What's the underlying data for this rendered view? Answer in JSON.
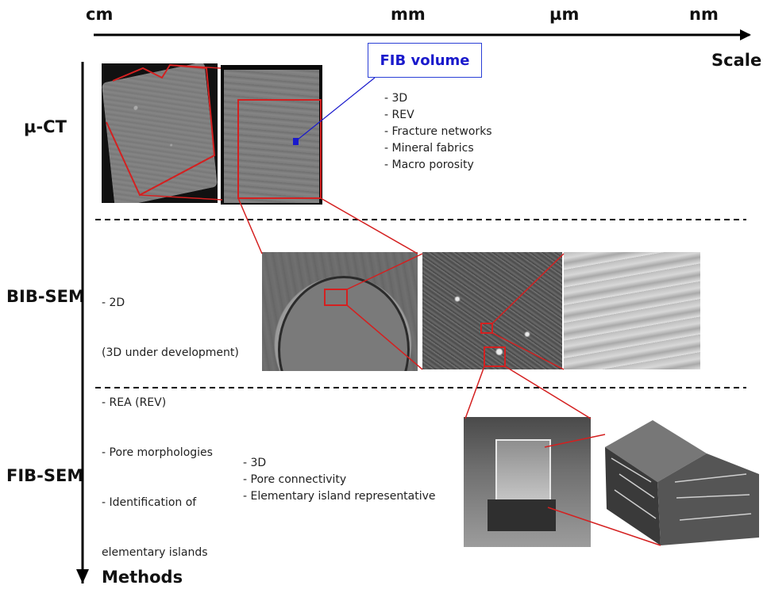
{
  "scale_axis": {
    "title": "Scale",
    "ticks": [
      "cm",
      "mm",
      "µm",
      "nm"
    ]
  },
  "methods_axis": {
    "title": "Methods"
  },
  "callout": {
    "label": "FIB volume"
  },
  "rows": [
    {
      "method": "µ-CT",
      "bullets": [
        "- 3D",
        "- REV",
        "- Fracture networks",
        "- Mineral fabrics",
        "- Macro porosity"
      ]
    },
    {
      "method": "BIB-SEM",
      "bullets": [
        "- 2D",
        "  (3D under development)",
        "- REA (REV)",
        "- Pore morphologies",
        "- Identification of",
        "  elementary islands"
      ]
    },
    {
      "method": "FIB-SEM",
      "bullets": [
        "- 3D",
        "- Pore connectivity",
        "- Elementary island representative"
      ]
    }
  ],
  "colors": {
    "highlight": "#d42020",
    "callout_blue": "#1a1acc",
    "axis": "#000000"
  }
}
